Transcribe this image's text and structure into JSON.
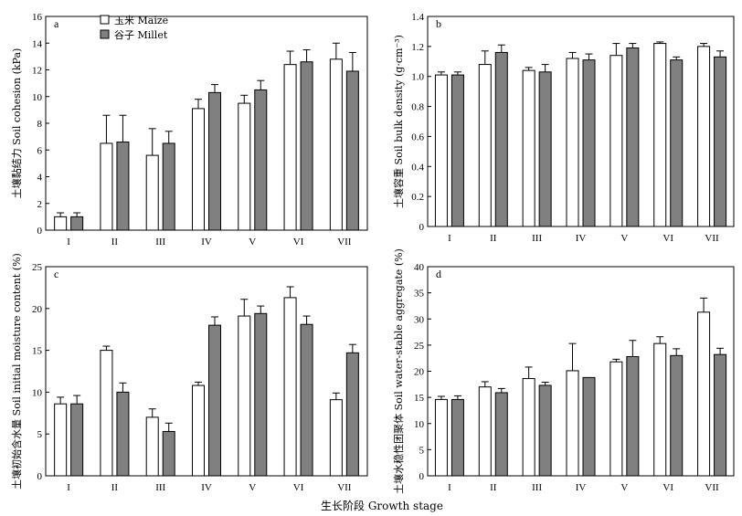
{
  "figure": {
    "xlabel": "生长阶段 Growth stage"
  },
  "legend": {
    "items": [
      {
        "label": "玉米 Maize",
        "color": "#ffffff"
      },
      {
        "label": "谷子 Millet",
        "color": "#808080"
      }
    ]
  },
  "chart_data": [
    {
      "type": "bar",
      "panel": "a",
      "ylabel": "土壤黏结力 Soil cohesion (kPa)",
      "ylim": [
        0,
        16
      ],
      "yticks": [
        "0",
        "2",
        "4",
        "6",
        "8",
        "10",
        "12",
        "14",
        "16"
      ],
      "categories": [
        "I",
        "II",
        "III",
        "IV",
        "V",
        "VI",
        "VII"
      ],
      "series": [
        {
          "name": "玉米 Maize",
          "values": [
            1.0,
            6.5,
            5.6,
            9.1,
            9.5,
            12.4,
            12.8
          ],
          "errors": [
            0.3,
            2.1,
            2.0,
            0.7,
            0.6,
            1.0,
            1.2
          ]
        },
        {
          "name": "谷子 Millet",
          "values": [
            1.0,
            6.6,
            6.5,
            10.3,
            10.5,
            12.6,
            11.9
          ],
          "errors": [
            0.3,
            2.0,
            0.9,
            0.6,
            0.7,
            0.9,
            1.4
          ]
        }
      ]
    },
    {
      "type": "bar",
      "panel": "b",
      "ylabel": "土壤容重 Soil bulk density (g·cm⁻³)",
      "ylim": [
        0,
        1.4
      ],
      "yticks": [
        "0",
        "0.2",
        "0.4",
        "0.6",
        "0.8",
        "1.0",
        "1.2",
        "1.4"
      ],
      "categories": [
        "I",
        "II",
        "III",
        "IV",
        "V",
        "VI",
        "VII"
      ],
      "series": [
        {
          "name": "玉米 Maize",
          "values": [
            1.01,
            1.08,
            1.04,
            1.12,
            1.14,
            1.22,
            1.2
          ],
          "errors": [
            0.02,
            0.09,
            0.02,
            0.04,
            0.08,
            0.01,
            0.02
          ]
        },
        {
          "name": "谷子 Millet",
          "values": [
            1.01,
            1.16,
            1.03,
            1.11,
            1.19,
            1.11,
            1.13
          ],
          "errors": [
            0.02,
            0.05,
            0.05,
            0.04,
            0.03,
            0.02,
            0.04
          ]
        }
      ]
    },
    {
      "type": "bar",
      "panel": "c",
      "ylabel": "土壤初始含水量 Soil initial moisture content (%)",
      "ylim": [
        0,
        25
      ],
      "yticks": [
        "0",
        "5",
        "10",
        "15",
        "20",
        "25"
      ],
      "categories": [
        "I",
        "II",
        "III",
        "IV",
        "V",
        "VI",
        "VII"
      ],
      "series": [
        {
          "name": "玉米 Maize",
          "values": [
            8.6,
            15.0,
            7.0,
            10.8,
            19.1,
            21.3,
            9.1
          ],
          "errors": [
            0.8,
            0.5,
            1.0,
            0.4,
            2.0,
            1.3,
            0.8
          ]
        },
        {
          "name": "谷子 Millet",
          "values": [
            8.6,
            10.0,
            5.3,
            18.0,
            19.4,
            18.1,
            14.7
          ],
          "errors": [
            1.0,
            1.1,
            1.0,
            1.0,
            0.9,
            1.0,
            1.0
          ]
        }
      ]
    },
    {
      "type": "bar",
      "panel": "d",
      "ylabel": "土壤水稳性团聚体 Soil water-stable aggregate (%)",
      "ylim": [
        0,
        40
      ],
      "yticks": [
        "0",
        "5",
        "10",
        "15",
        "20",
        "25",
        "30",
        "35",
        "40"
      ],
      "categories": [
        "I",
        "II",
        "III",
        "IV",
        "V",
        "VI",
        "VII"
      ],
      "series": [
        {
          "name": "玉米 Maize",
          "values": [
            14.6,
            17.0,
            18.6,
            20.1,
            21.8,
            25.3,
            31.3
          ],
          "errors": [
            0.6,
            1.0,
            2.2,
            5.2,
            0.5,
            1.3,
            2.7
          ]
        },
        {
          "name": "谷子 Millet",
          "values": [
            14.6,
            15.9,
            17.3,
            18.8,
            22.8,
            23.0,
            23.2
          ],
          "errors": [
            0.7,
            0.8,
            0.6,
            0.0,
            3.1,
            1.3,
            1.2
          ]
        }
      ]
    }
  ]
}
